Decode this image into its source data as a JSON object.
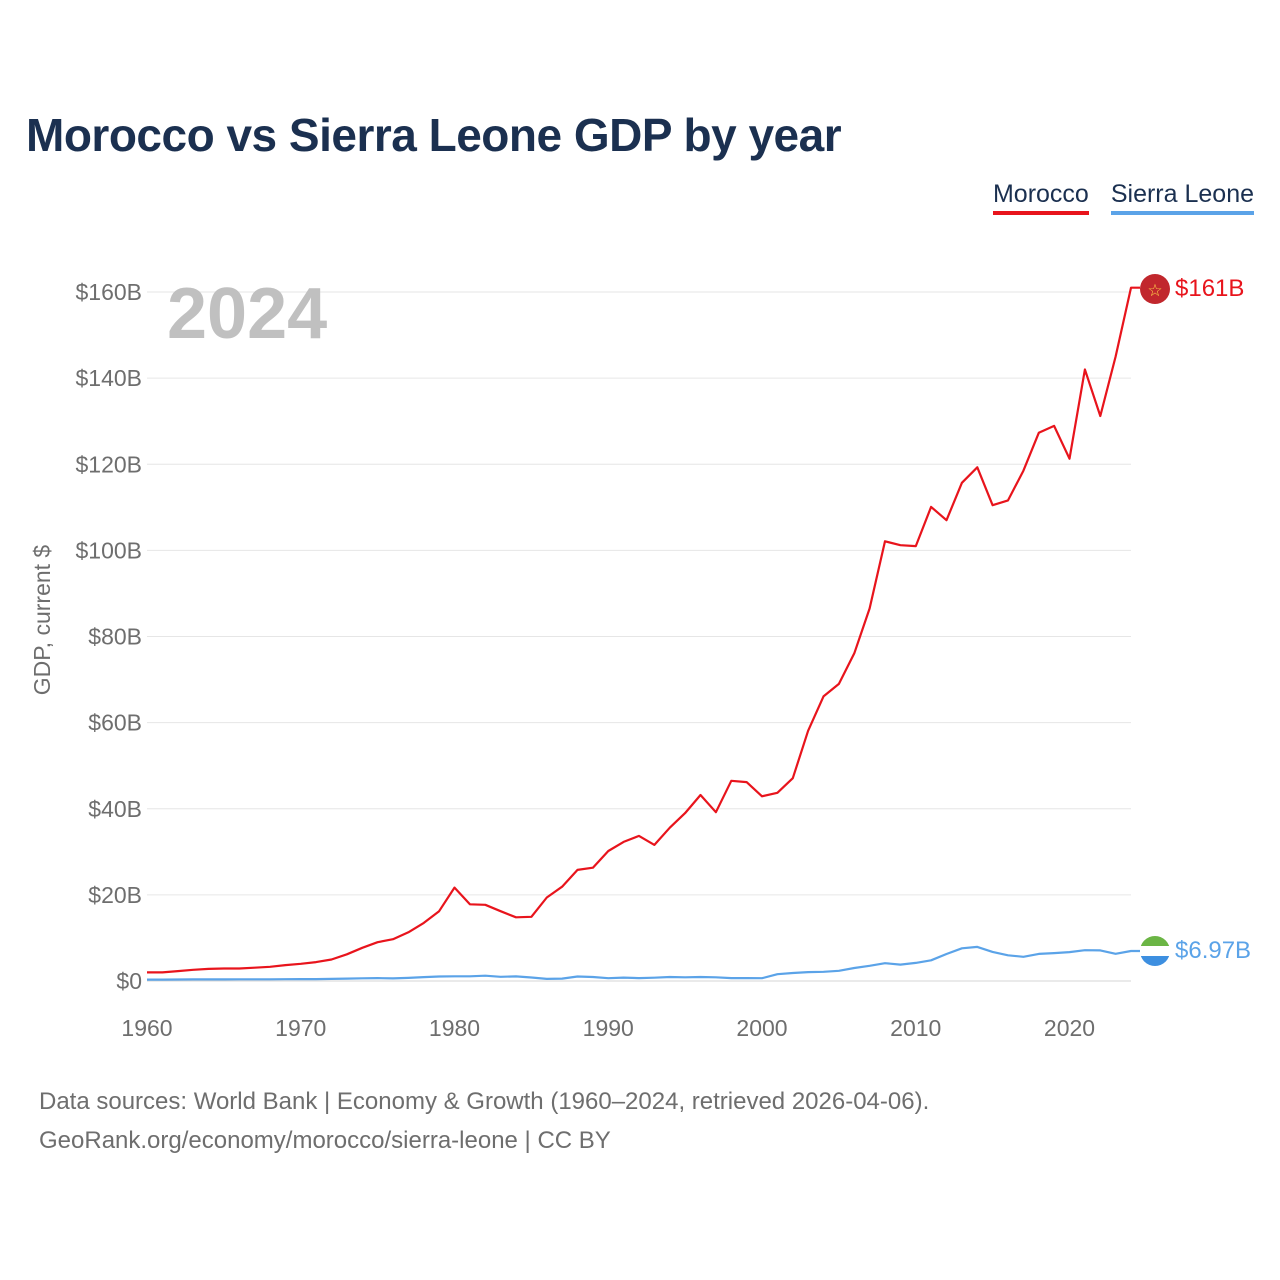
{
  "title": "Morocco vs Sierra Leone GDP by year",
  "legend": [
    {
      "label": "Morocco",
      "color": "#e8141c"
    },
    {
      "label": "Sierra Leone",
      "color": "#5ba3e8"
    }
  ],
  "footer": {
    "line1": "Data sources: World Bank | Economy & Growth (1960–2024, retrieved 2026-04-06).",
    "line2": "GeoRank.org/economy/morocco/sierra-leone | CC BY"
  },
  "year_watermark": "2024",
  "chart_data": {
    "type": "line",
    "title": "Morocco vs Sierra Leone GDP by year",
    "xlabel": "",
    "ylabel": "GDP, current $",
    "xlim": [
      1960,
      2024
    ],
    "ylim": [
      0,
      160
    ],
    "value_unit": "billion US$",
    "grid": true,
    "legend_position": "top-right",
    "x_ticks": [
      1960,
      1970,
      1980,
      1990,
      2000,
      2010,
      2020
    ],
    "x_tick_labels": [
      "1960",
      "1970",
      "1980",
      "1990",
      "2000",
      "2010",
      "2020"
    ],
    "y_ticks": [
      0,
      20,
      40,
      60,
      80,
      100,
      120,
      140,
      160
    ],
    "y_tick_labels": [
      "$0",
      "$20B",
      "$40B",
      "$60B",
      "$80B",
      "$100B",
      "$120B",
      "$140B",
      "$160B"
    ],
    "x": [
      1960,
      1961,
      1962,
      1963,
      1964,
      1965,
      1966,
      1967,
      1968,
      1969,
      1970,
      1971,
      1972,
      1973,
      1974,
      1975,
      1976,
      1977,
      1978,
      1979,
      1980,
      1981,
      1982,
      1983,
      1984,
      1985,
      1986,
      1987,
      1988,
      1989,
      1990,
      1991,
      1992,
      1993,
      1994,
      1995,
      1996,
      1997,
      1998,
      1999,
      2000,
      2001,
      2002,
      2003,
      2004,
      2005,
      2006,
      2007,
      2008,
      2009,
      2010,
      2011,
      2012,
      2013,
      2014,
      2015,
      2016,
      2017,
      2018,
      2019,
      2020,
      2021,
      2022,
      2023,
      2024
    ],
    "series": [
      {
        "name": "Morocco",
        "color": "#e8141c",
        "end_label": "$161B",
        "values": [
          2.0,
          2.0,
          2.3,
          2.6,
          2.8,
          2.9,
          2.9,
          3.1,
          3.3,
          3.7,
          4.0,
          4.4,
          5.0,
          6.2,
          7.7,
          9.0,
          9.7,
          11.3,
          13.5,
          16.2,
          21.7,
          17.8,
          17.7,
          16.2,
          14.8,
          14.9,
          19.4,
          21.9,
          25.8,
          26.3,
          30.2,
          32.3,
          33.7,
          31.6,
          35.6,
          39.0,
          43.2,
          39.2,
          46.5,
          46.2,
          42.9,
          43.7,
          47.1,
          58.1,
          66.1,
          69.0,
          76.1,
          86.5,
          102.1,
          101.2,
          101.0,
          110.1,
          107.0,
          115.7,
          119.3,
          110.5,
          111.6,
          118.5,
          127.3,
          128.9,
          121.3,
          142.0,
          131.2,
          145.0,
          161.0
        ]
      },
      {
        "name": "Sierra Leone",
        "color": "#5ba3e8",
        "end_label": "$6.97B",
        "values": [
          0.32,
          0.33,
          0.34,
          0.36,
          0.37,
          0.38,
          0.39,
          0.4,
          0.4,
          0.42,
          0.44,
          0.45,
          0.49,
          0.55,
          0.63,
          0.68,
          0.6,
          0.71,
          0.9,
          1.05,
          1.1,
          1.1,
          1.24,
          0.98,
          1.06,
          0.81,
          0.48,
          0.55,
          1.05,
          0.94,
          0.65,
          0.78,
          0.68,
          0.77,
          0.92,
          0.87,
          0.94,
          0.85,
          0.67,
          0.67,
          0.64,
          1.59,
          1.85,
          2.06,
          2.13,
          2.37,
          3.01,
          3.52,
          4.13,
          3.81,
          4.21,
          4.81,
          6.27,
          7.6,
          7.91,
          6.75,
          5.97,
          5.62,
          6.29,
          6.47,
          6.72,
          7.15,
          7.1,
          6.32,
          6.97
        ]
      }
    ]
  }
}
